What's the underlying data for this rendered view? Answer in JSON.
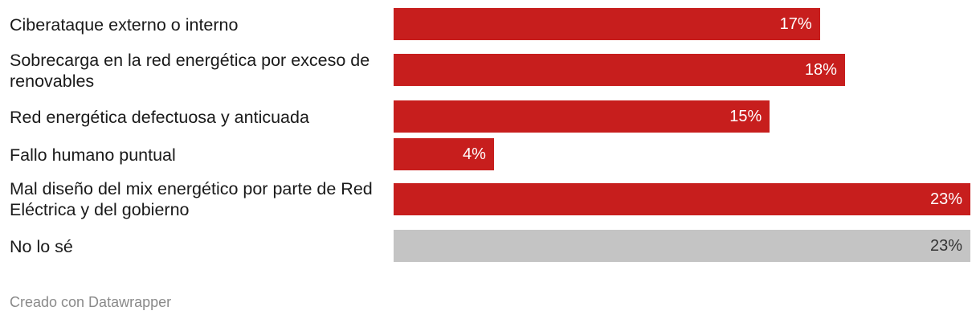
{
  "chart_data": {
    "type": "bar",
    "orientation": "horizontal",
    "categories": [
      "Ciberataque externo o interno",
      "Sobrecarga en la red energética por exceso de renovables",
      "Red energética defectuosa y anticuada",
      "Fallo humano puntual",
      "Mal diseño del mix energético por parte de Red Eléctrica y del gobierno",
      "No lo sé"
    ],
    "values": [
      17,
      18,
      15,
      4,
      23,
      23
    ],
    "value_labels": [
      "17%",
      "18%",
      "15%",
      "4%",
      "23%",
      "23%"
    ],
    "bar_colors": [
      "#c71e1d",
      "#c71e1d",
      "#c71e1d",
      "#c71e1d",
      "#c71e1d",
      "#c4c4c4"
    ],
    "value_label_colors": [
      "#ffffff",
      "#ffffff",
      "#ffffff",
      "#ffffff",
      "#ffffff",
      "#333333"
    ],
    "xlim": [
      0,
      23
    ],
    "grid": false
  },
  "footer": {
    "credit": "Creado con Datawrapper"
  }
}
